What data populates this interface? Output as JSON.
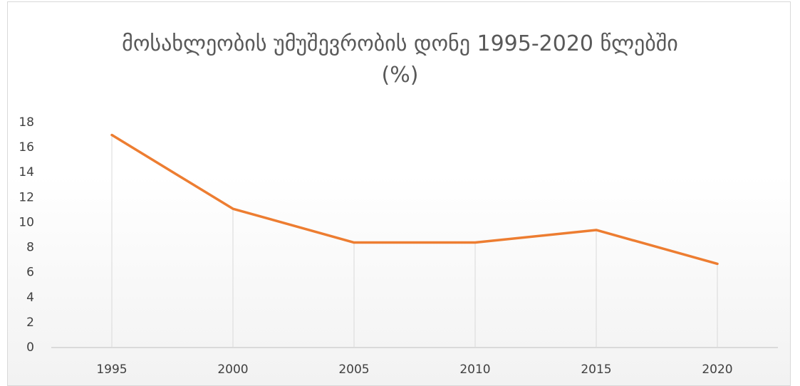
{
  "chart_data": {
    "type": "line",
    "title": "მოსახლეობის უმუშევრობის დონე 1995-2020 წლებში (%)",
    "categories": [
      "1995",
      "2000",
      "2005",
      "2010",
      "2015",
      "2020"
    ],
    "values": [
      17.0,
      11.1,
      8.4,
      8.4,
      9.4,
      6.7
    ],
    "color": "#ed7d31",
    "ylim": [
      0,
      18
    ],
    "yticks": [
      0,
      2,
      4,
      6,
      8,
      10,
      12,
      14,
      16,
      18
    ],
    "grid": false,
    "drop_lines": true
  }
}
